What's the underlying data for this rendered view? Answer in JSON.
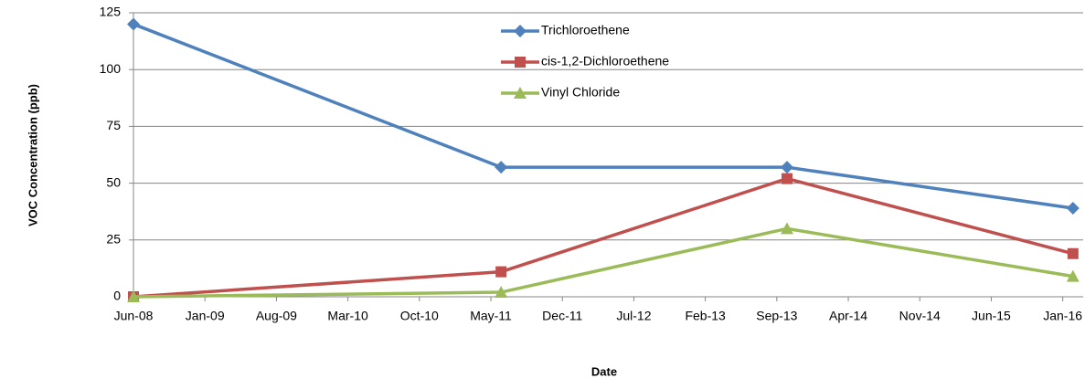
{
  "chart_data": {
    "type": "line",
    "y_label": "VOC Concentration (ppb)",
    "x_label": "Date",
    "x": [
      "2008-06",
      "2011-06",
      "2013-10",
      "2016-02"
    ],
    "series": [
      {
        "name": "Trichloroethene",
        "color": "#4f81bd",
        "marker": "diamond",
        "values": [
          120,
          57,
          57,
          39
        ]
      },
      {
        "name": "cis-1,2-Dichloroethene",
        "color": "#c0504d",
        "marker": "square",
        "values": [
          0,
          11,
          52,
          19
        ]
      },
      {
        "name": "Vinyl Chloride",
        "color": "#9bbb59",
        "marker": "triangle",
        "values": [
          0,
          2,
          30,
          9
        ]
      }
    ],
    "xlim": [
      "2008-06",
      "2016-03"
    ],
    "xticks": [
      {
        "value": "2008-06",
        "label": "Jun-08"
      },
      {
        "value": "2009-01",
        "label": "Jan-09"
      },
      {
        "value": "2009-08",
        "label": "Aug-09"
      },
      {
        "value": "2010-03",
        "label": "Mar-10"
      },
      {
        "value": "2010-10",
        "label": "Oct-10"
      },
      {
        "value": "2011-05",
        "label": "May-11"
      },
      {
        "value": "2011-12",
        "label": "Dec-11"
      },
      {
        "value": "2012-07",
        "label": "Jul-12"
      },
      {
        "value": "2013-02",
        "label": "Feb-13"
      },
      {
        "value": "2013-09",
        "label": "Sep-13"
      },
      {
        "value": "2014-04",
        "label": "Apr-14"
      },
      {
        "value": "2014-11",
        "label": "Nov-14"
      },
      {
        "value": "2015-06",
        "label": "Jun-15"
      },
      {
        "value": "2016-01",
        "label": "Jan-16"
      }
    ],
    "ylim": [
      0,
      125
    ],
    "yticks": [
      0,
      25,
      50,
      75,
      100,
      125
    ],
    "grid": true
  }
}
